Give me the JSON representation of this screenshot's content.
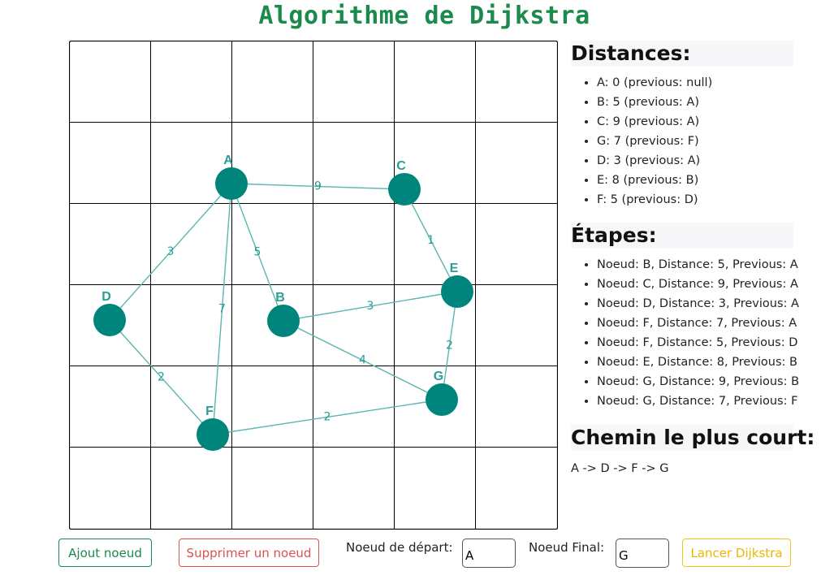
{
  "title": "Algorithme de Dijkstra",
  "graph": {
    "grid": {
      "rows": 6,
      "cols": 6
    },
    "node_color": "#00857c",
    "edge_color": "#5ab8b0",
    "nodes": [
      {
        "id": "A"
      },
      {
        "id": "B"
      },
      {
        "id": "C"
      },
      {
        "id": "D"
      },
      {
        "id": "E"
      },
      {
        "id": "F"
      },
      {
        "id": "G"
      }
    ],
    "edges": [
      {
        "from": "A",
        "to": "C",
        "weight": "9"
      },
      {
        "from": "A",
        "to": "D",
        "weight": "3"
      },
      {
        "from": "A",
        "to": "B",
        "weight": "5"
      },
      {
        "from": "A",
        "to": "F",
        "weight": "7"
      },
      {
        "from": "C",
        "to": "E",
        "weight": "1"
      },
      {
        "from": "B",
        "to": "E",
        "weight": "3"
      },
      {
        "from": "B",
        "to": "G",
        "weight": "4"
      },
      {
        "from": "E",
        "to": "G",
        "weight": "2"
      },
      {
        "from": "D",
        "to": "F",
        "weight": "2"
      },
      {
        "from": "F",
        "to": "G",
        "weight": "2"
      }
    ]
  },
  "distances": {
    "heading": "Distances:",
    "items": [
      "A: 0 (previous: null)",
      "B: 5 (previous: A)",
      "C: 9 (previous: A)",
      "G: 7 (previous: F)",
      "D: 3 (previous: A)",
      "E: 8 (previous: B)",
      "F: 5 (previous: D)"
    ]
  },
  "steps": {
    "heading": "Étapes:",
    "items": [
      "Noeud: B, Distance: 5, Previous: A",
      "Noeud: C, Distance: 9, Previous: A",
      "Noeud: D, Distance: 3, Previous: A",
      "Noeud: F, Distance: 7, Previous: A",
      "Noeud: F, Distance: 5, Previous: D",
      "Noeud: E, Distance: 8, Previous: B",
      "Noeud: G, Distance: 9, Previous: B",
      "Noeud: G, Distance: 7, Previous: F"
    ]
  },
  "shortest_path": {
    "heading": "Chemin le plus court:",
    "value": "A -> D -> F -> G"
  },
  "controls": {
    "add_label": "Ajout noeud",
    "delete_label": "Supprimer un noeud",
    "start_label": "Noeud de départ:",
    "start_value": "A",
    "end_label": "Noeud Final:",
    "end_value": "G",
    "run_label": "Lancer Dijkstra"
  }
}
